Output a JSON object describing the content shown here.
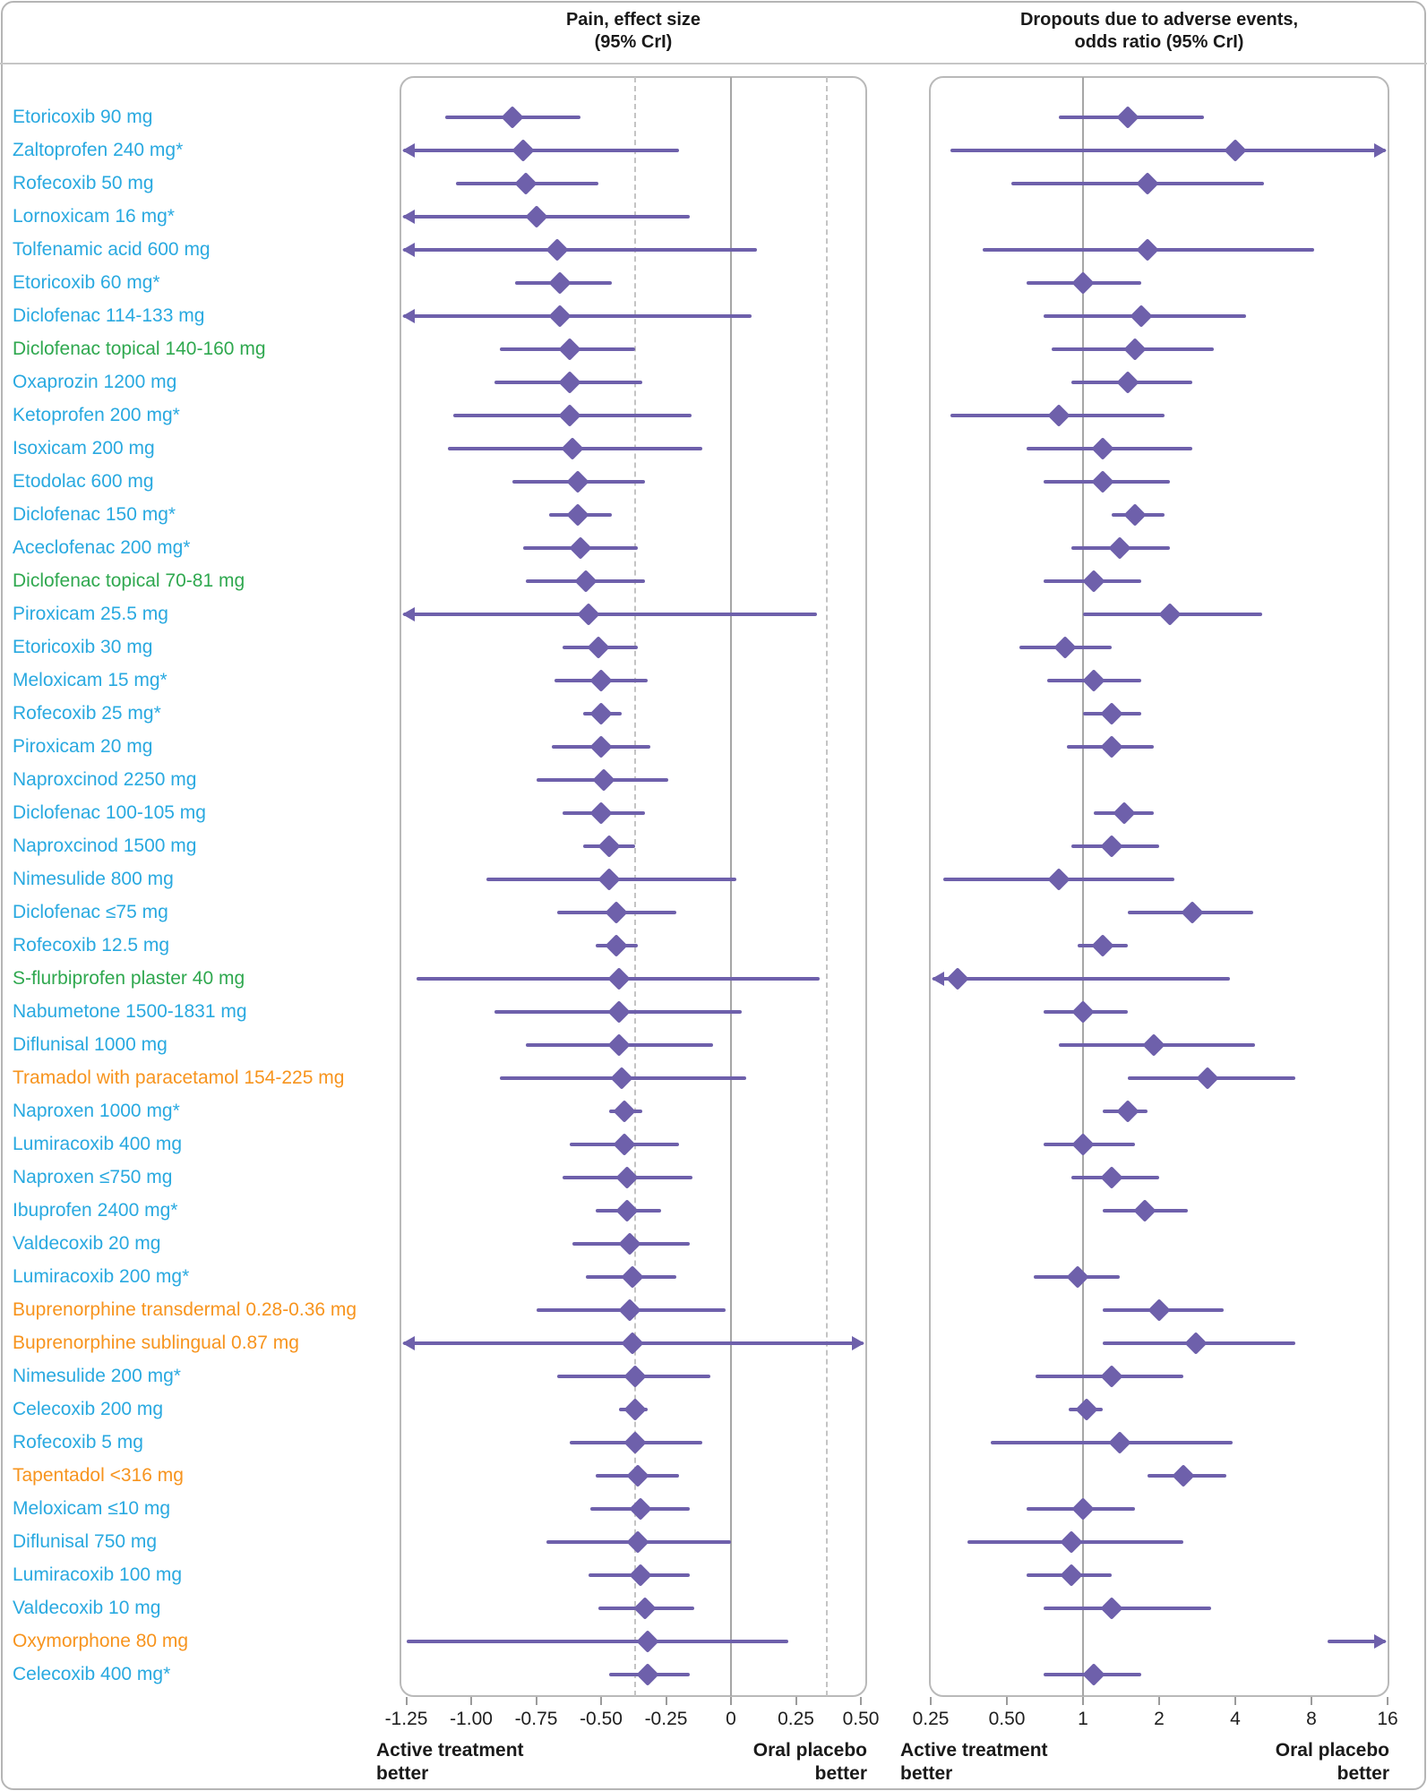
{
  "colors": {
    "nsaid_label": "#29a9e0",
    "topical_label": "#2fa84f",
    "opioid_label": "#f7941e",
    "marker": "#6e60ab",
    "ref_solid": "#a6a6a6",
    "ref_dashed": "#c4c4c4"
  },
  "chart_data": [
    {
      "type": "forest",
      "id": "pain",
      "title": "Pain, effect size\n(95% CrI)",
      "scale": "linear",
      "xlim": [
        -1.27,
        0.52
      ],
      "ticks": [
        {
          "v": -1.25,
          "label": "-1.25"
        },
        {
          "v": -1.0,
          "label": "-1.00"
        },
        {
          "v": -0.75,
          "label": "-0.75"
        },
        {
          "v": -0.5,
          "label": "-0.50"
        },
        {
          "v": -0.25,
          "label": "-0.25"
        },
        {
          "v": 0,
          "label": "0"
        },
        {
          "v": 0.25,
          "label": "0.25"
        },
        {
          "v": 0.5,
          "label": "0.50"
        }
      ],
      "ref_solid": 0,
      "ref_dashed": [
        -0.37,
        0.37
      ],
      "footer_left": "Active treatment\nbetter",
      "footer_right": "Oral placebo\nbetter"
    },
    {
      "type": "forest",
      "id": "dropouts",
      "title": "Dropouts due to adverse events,\nodds ratio (95% CrI)",
      "scale": "log2",
      "xlim": [
        0.25,
        16
      ],
      "ticks": [
        {
          "v": 0.25,
          "label": "0.25"
        },
        {
          "v": 0.5,
          "label": "0.50"
        },
        {
          "v": 1,
          "label": "1"
        },
        {
          "v": 2,
          "label": "2"
        },
        {
          "v": 4,
          "label": "4"
        },
        {
          "v": 8,
          "label": "8"
        },
        {
          "v": 16,
          "label": "16"
        }
      ],
      "ref_solid": 1,
      "ref_dashed": [],
      "footer_left": "Active treatment\nbetter",
      "footer_right": "Oral placebo\nbetter"
    }
  ],
  "rows": [
    {
      "label": "Etoricoxib 90 mg",
      "grp": "nsaid",
      "pain": [
        -0.84,
        -1.1,
        -0.58,
        0,
        0
      ],
      "dae": [
        1.5,
        0.8,
        3.0,
        0,
        0
      ]
    },
    {
      "label": "Zaltoprofen 240 mg*",
      "grp": "nsaid",
      "pain": [
        -0.8,
        -1.4,
        -0.2,
        1,
        0
      ],
      "dae": [
        4.0,
        0.3,
        18,
        0,
        1
      ]
    },
    {
      "label": "Rofecoxib 50 mg",
      "grp": "nsaid",
      "pain": [
        -0.79,
        -1.06,
        -0.51,
        0,
        0
      ],
      "dae": [
        1.8,
        0.52,
        5.2,
        0,
        0
      ]
    },
    {
      "label": "Lornoxicam 16 mg*",
      "grp": "nsaid",
      "pain": [
        -0.75,
        -1.4,
        -0.16,
        1,
        0
      ],
      "dae": null
    },
    {
      "label": "Tolfenamic acid 600 mg",
      "grp": "nsaid",
      "pain": [
        -0.67,
        -1.4,
        0.1,
        1,
        0
      ],
      "dae": [
        1.8,
        0.4,
        8.2,
        0,
        0
      ]
    },
    {
      "label": "Etoricoxib 60 mg*",
      "grp": "nsaid",
      "pain": [
        -0.66,
        -0.83,
        -0.46,
        0,
        0
      ],
      "dae": [
        1.0,
        0.6,
        1.7,
        0,
        0
      ]
    },
    {
      "label": "Diclofenac 114-133 mg",
      "grp": "nsaid",
      "pain": [
        -0.66,
        -1.4,
        0.08,
        1,
        0
      ],
      "dae": [
        1.7,
        0.7,
        4.4,
        0,
        0
      ]
    },
    {
      "label": "Diclofenac topical 140-160 mg",
      "grp": "topical",
      "pain": [
        -0.62,
        -0.89,
        -0.37,
        0,
        0
      ],
      "dae": [
        1.6,
        0.75,
        3.3,
        0,
        0
      ]
    },
    {
      "label": "Oxaprozin 1200 mg",
      "grp": "nsaid",
      "pain": [
        -0.62,
        -0.91,
        -0.34,
        0,
        0
      ],
      "dae": [
        1.5,
        0.9,
        2.7,
        0,
        0
      ]
    },
    {
      "label": "Ketoprofen 200 mg*",
      "grp": "nsaid",
      "pain": [
        -0.62,
        -1.07,
        -0.15,
        0,
        0
      ],
      "dae": [
        0.8,
        0.3,
        2.1,
        0,
        0
      ]
    },
    {
      "label": "Isoxicam 200 mg",
      "grp": "nsaid",
      "pain": [
        -0.61,
        -1.09,
        -0.11,
        0,
        0
      ],
      "dae": [
        1.2,
        0.6,
        2.7,
        0,
        0
      ]
    },
    {
      "label": "Etodolac 600 mg",
      "grp": "nsaid",
      "pain": [
        -0.59,
        -0.84,
        -0.33,
        0,
        0
      ],
      "dae": [
        1.2,
        0.7,
        2.2,
        0,
        0
      ]
    },
    {
      "label": "Diclofenac 150 mg*",
      "grp": "nsaid",
      "pain": [
        -0.59,
        -0.7,
        -0.46,
        0,
        0
      ],
      "dae": [
        1.6,
        1.3,
        2.1,
        0,
        0
      ]
    },
    {
      "label": "Aceclofenac 200 mg*",
      "grp": "nsaid",
      "pain": [
        -0.58,
        -0.8,
        -0.36,
        0,
        0
      ],
      "dae": [
        1.4,
        0.9,
        2.2,
        0,
        0
      ]
    },
    {
      "label": "Diclofenac topical 70-81 mg",
      "grp": "topical",
      "pain": [
        -0.56,
        -0.79,
        -0.33,
        0,
        0
      ],
      "dae": [
        1.1,
        0.7,
        1.7,
        0,
        0
      ]
    },
    {
      "label": "Piroxicam 25.5 mg",
      "grp": "nsaid",
      "pain": [
        -0.55,
        -1.4,
        0.33,
        1,
        0
      ],
      "dae": [
        2.2,
        1.0,
        5.1,
        0,
        0
      ]
    },
    {
      "label": "Etoricoxib 30 mg",
      "grp": "nsaid",
      "pain": [
        -0.51,
        -0.65,
        -0.36,
        0,
        0
      ],
      "dae": [
        0.85,
        0.56,
        1.3,
        0,
        0
      ]
    },
    {
      "label": "Meloxicam 15 mg*",
      "grp": "nsaid",
      "pain": [
        -0.5,
        -0.68,
        -0.32,
        0,
        0
      ],
      "dae": [
        1.1,
        0.72,
        1.7,
        0,
        0
      ]
    },
    {
      "label": "Rofecoxib 25 mg*",
      "grp": "nsaid",
      "pain": [
        -0.5,
        -0.57,
        -0.42,
        0,
        0
      ],
      "dae": [
        1.3,
        1.0,
        1.7,
        0,
        0
      ]
    },
    {
      "label": "Piroxicam 20 mg",
      "grp": "nsaid",
      "pain": [
        -0.5,
        -0.69,
        -0.31,
        0,
        0
      ],
      "dae": [
        1.3,
        0.86,
        1.9,
        0,
        0
      ]
    },
    {
      "label": "Naproxcinod 2250 mg",
      "grp": "nsaid",
      "pain": [
        -0.49,
        -0.75,
        -0.24,
        0,
        0
      ],
      "dae": null
    },
    {
      "label": "Diclofenac 100-105 mg",
      "grp": "nsaid",
      "pain": [
        -0.5,
        -0.65,
        -0.33,
        0,
        0
      ],
      "dae": [
        1.45,
        1.1,
        1.9,
        0,
        0
      ]
    },
    {
      "label": "Naproxcinod 1500 mg",
      "grp": "nsaid",
      "pain": [
        -0.47,
        -0.57,
        -0.37,
        0,
        0
      ],
      "dae": [
        1.3,
        0.9,
        2.0,
        0,
        0
      ]
    },
    {
      "label": "Nimesulide 800 mg",
      "grp": "nsaid",
      "pain": [
        -0.47,
        -0.94,
        0.02,
        0,
        0
      ],
      "dae": [
        0.8,
        0.28,
        2.3,
        0,
        0
      ]
    },
    {
      "label": "Diclofenac ≤75 mg",
      "grp": "nsaid",
      "pain": [
        -0.44,
        -0.67,
        -0.21,
        0,
        0
      ],
      "dae": [
        2.7,
        1.5,
        4.7,
        0,
        0
      ]
    },
    {
      "label": "Rofecoxib 12.5 mg",
      "grp": "nsaid",
      "pain": [
        -0.44,
        -0.52,
        -0.36,
        0,
        0
      ],
      "dae": [
        1.2,
        0.95,
        1.5,
        0,
        0
      ]
    },
    {
      "label": "S-flurbiprofen plaster 40 mg",
      "grp": "topical",
      "pain": [
        -0.43,
        -1.21,
        0.34,
        0,
        0
      ],
      "dae": [
        0.32,
        0.2,
        3.8,
        1,
        0
      ]
    },
    {
      "label": "Nabumetone 1500-1831 mg",
      "grp": "nsaid",
      "pain": [
        -0.43,
        -0.91,
        0.04,
        0,
        0
      ],
      "dae": [
        1.0,
        0.7,
        1.5,
        0,
        0
      ]
    },
    {
      "label": "Diflunisal 1000 mg",
      "grp": "nsaid",
      "pain": [
        -0.43,
        -0.79,
        -0.07,
        0,
        0
      ],
      "dae": [
        1.9,
        0.8,
        4.8,
        0,
        0
      ]
    },
    {
      "label": "Tramadol with paracetamol 154-225 mg",
      "grp": "opioid",
      "pain": [
        -0.42,
        -0.89,
        0.06,
        0,
        0
      ],
      "dae": [
        3.1,
        1.5,
        6.9,
        0,
        0
      ]
    },
    {
      "label": "Naproxen 1000 mg*",
      "grp": "nsaid",
      "pain": [
        -0.41,
        -0.47,
        -0.34,
        0,
        0
      ],
      "dae": [
        1.5,
        1.2,
        1.8,
        0,
        0
      ]
    },
    {
      "label": "Lumiracoxib 400 mg",
      "grp": "nsaid",
      "pain": [
        -0.41,
        -0.62,
        -0.2,
        0,
        0
      ],
      "dae": [
        1.0,
        0.7,
        1.6,
        0,
        0
      ]
    },
    {
      "label": "Naproxen ≤750 mg",
      "grp": "nsaid",
      "pain": [
        -0.4,
        -0.65,
        -0.15,
        0,
        0
      ],
      "dae": [
        1.3,
        0.9,
        2.0,
        0,
        0
      ]
    },
    {
      "label": "Ibuprofen 2400 mg*",
      "grp": "nsaid",
      "pain": [
        -0.4,
        -0.52,
        -0.27,
        0,
        0
      ],
      "dae": [
        1.75,
        1.2,
        2.6,
        0,
        0
      ]
    },
    {
      "label": "Valdecoxib 20 mg",
      "grp": "nsaid",
      "pain": [
        -0.39,
        -0.61,
        -0.16,
        0,
        0
      ],
      "dae": null
    },
    {
      "label": "Lumiracoxib 200 mg*",
      "grp": "nsaid",
      "pain": [
        -0.38,
        -0.56,
        -0.21,
        0,
        0
      ],
      "dae": [
        0.95,
        0.64,
        1.4,
        0,
        0
      ]
    },
    {
      "label": "Buprenorphine transdermal 0.28-0.36 mg",
      "grp": "opioid",
      "pain": [
        -0.39,
        -0.75,
        -0.02,
        0,
        0
      ],
      "dae": [
        2.0,
        1.2,
        3.6,
        0,
        0
      ]
    },
    {
      "label": "Buprenorphine sublingual 0.87 mg",
      "grp": "opioid",
      "pain": [
        -0.38,
        -1.4,
        0.52,
        1,
        1
      ],
      "dae": [
        2.8,
        1.2,
        6.9,
        0,
        0
      ]
    },
    {
      "label": "Nimesulide 200 mg*",
      "grp": "nsaid",
      "pain": [
        -0.37,
        -0.67,
        -0.08,
        0,
        0
      ],
      "dae": [
        1.3,
        0.65,
        2.5,
        0,
        0
      ]
    },
    {
      "label": "Celecoxib 200 mg",
      "grp": "nsaid",
      "pain": [
        -0.37,
        -0.43,
        -0.32,
        0,
        0
      ],
      "dae": [
        1.03,
        0.88,
        1.2,
        0,
        0
      ]
    },
    {
      "label": "Rofecoxib 5 mg",
      "grp": "nsaid",
      "pain": [
        -0.37,
        -0.62,
        -0.11,
        0,
        0
      ],
      "dae": [
        1.4,
        0.43,
        3.9,
        0,
        0
      ]
    },
    {
      "label": "Tapentadol <316 mg",
      "grp": "opioid",
      "pain": [
        -0.36,
        -0.52,
        -0.2,
        0,
        0
      ],
      "dae": [
        2.5,
        1.8,
        3.7,
        0,
        0
      ]
    },
    {
      "label": "Meloxicam ≤10 mg",
      "grp": "nsaid",
      "pain": [
        -0.35,
        -0.54,
        -0.16,
        0,
        0
      ],
      "dae": [
        1.0,
        0.6,
        1.6,
        0,
        0
      ]
    },
    {
      "label": "Diflunisal 750 mg",
      "grp": "nsaid",
      "pain": [
        -0.36,
        -0.71,
        0.0,
        0,
        0
      ],
      "dae": [
        0.9,
        0.35,
        2.5,
        0,
        0
      ]
    },
    {
      "label": "Lumiracoxib 100 mg",
      "grp": "nsaid",
      "pain": [
        -0.35,
        -0.55,
        -0.16,
        0,
        0
      ],
      "dae": [
        0.9,
        0.6,
        1.3,
        0,
        0
      ]
    },
    {
      "label": "Valdecoxib 10 mg",
      "grp": "nsaid",
      "pain": [
        -0.33,
        -0.51,
        -0.14,
        0,
        0
      ],
      "dae": [
        1.3,
        0.7,
        3.2,
        0,
        0
      ]
    },
    {
      "label": "Oxymorphone 80 mg",
      "grp": "opioid",
      "pain": [
        -0.32,
        -1.25,
        0.22,
        0,
        0
      ],
      "dae": [
        null,
        9.3,
        22,
        0,
        1
      ]
    },
    {
      "label": "Celecoxib 400 mg*",
      "grp": "nsaid",
      "pain": [
        -0.32,
        -0.47,
        -0.16,
        0,
        0
      ],
      "dae": [
        1.1,
        0.7,
        1.7,
        0,
        0
      ]
    }
  ]
}
